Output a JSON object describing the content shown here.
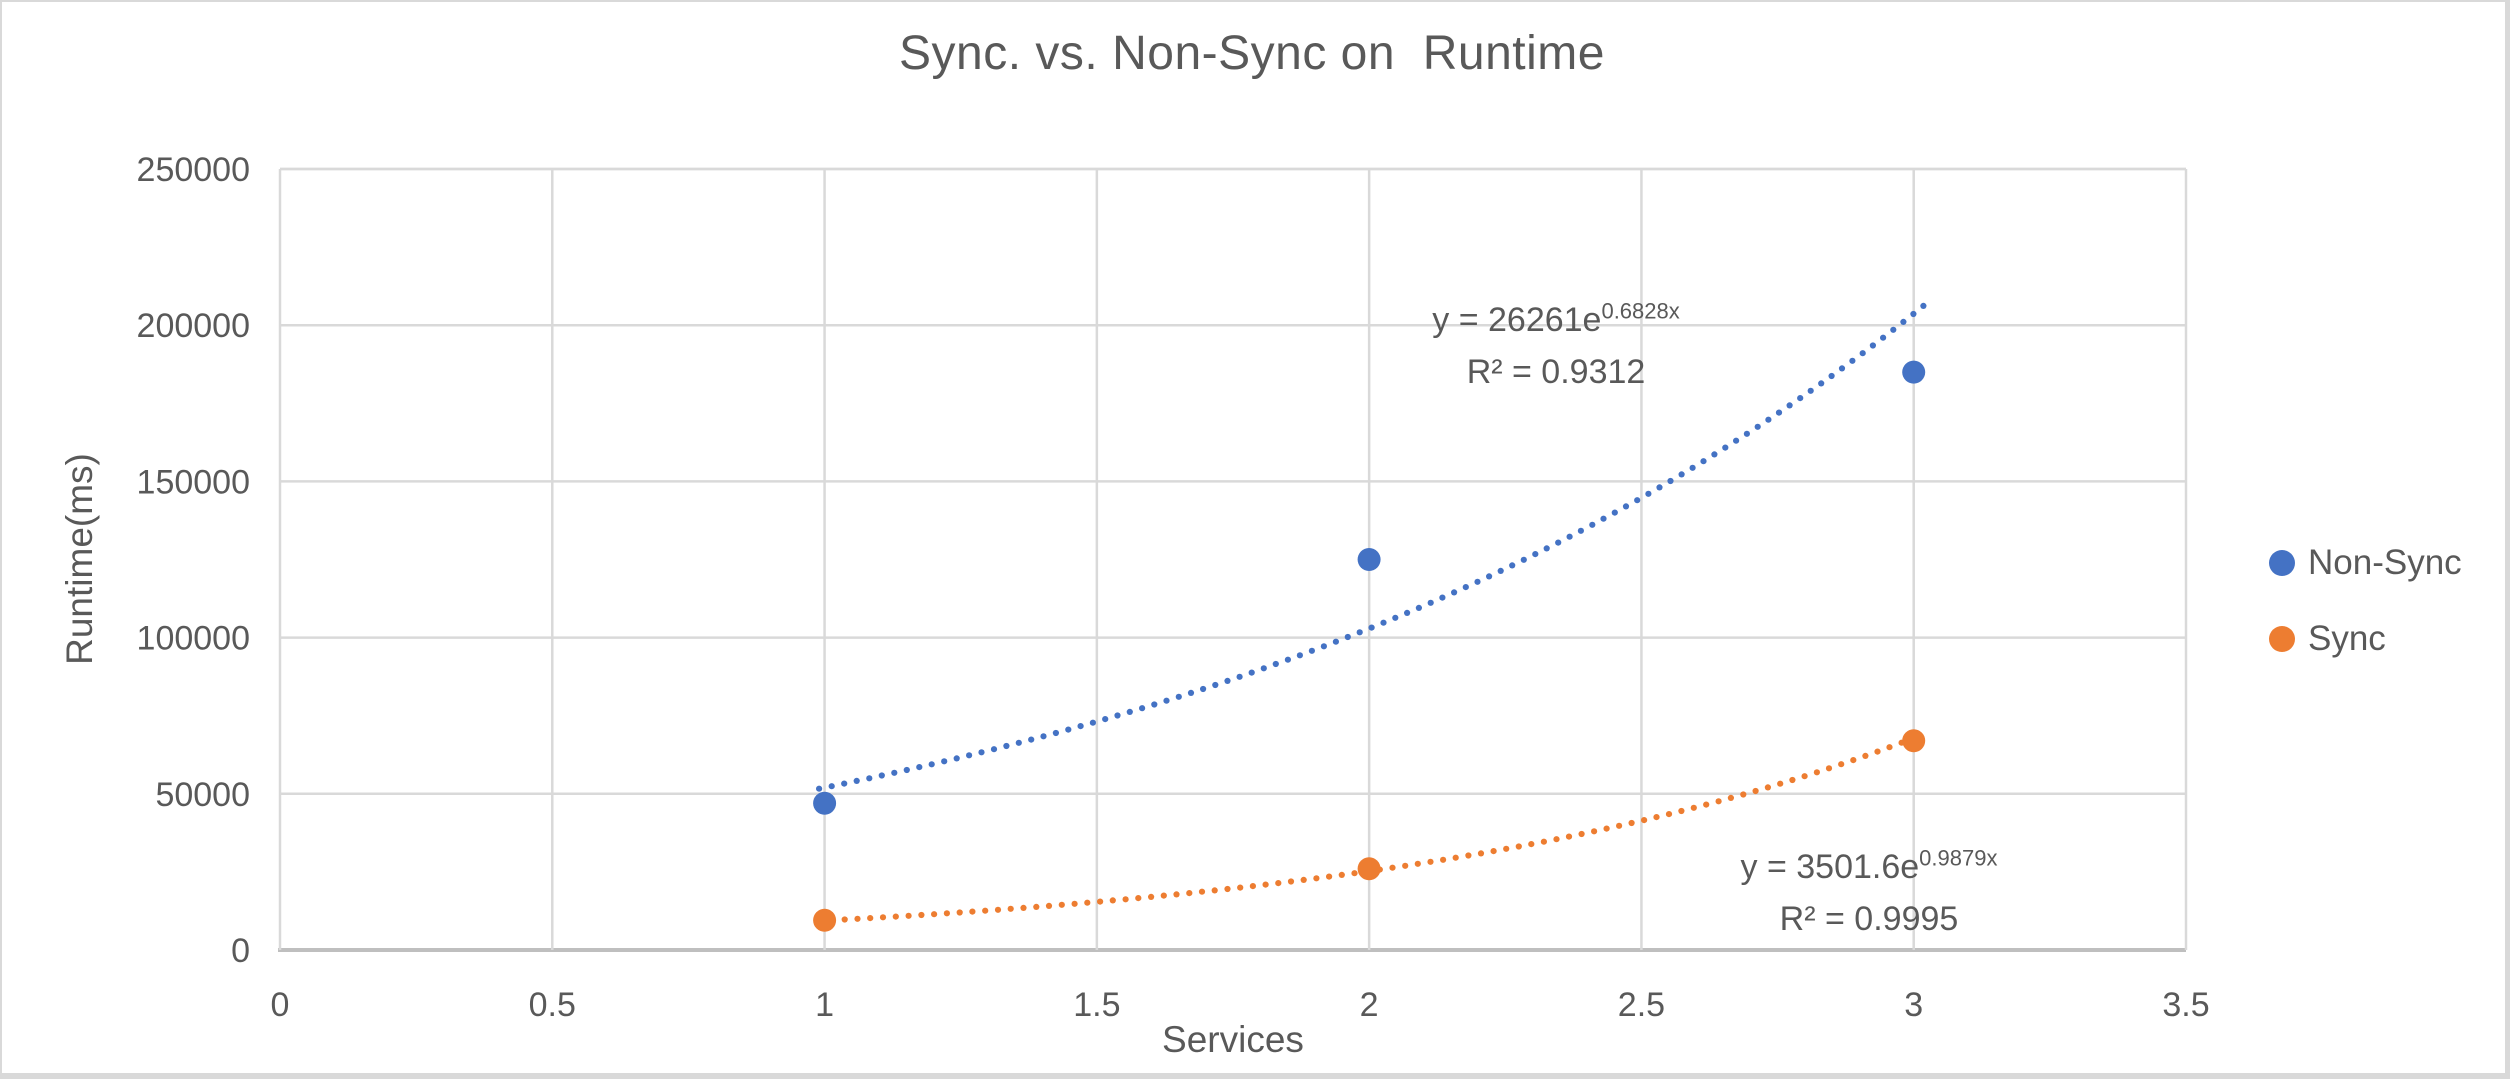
{
  "window": {
    "background": "#ffffff",
    "frame_border": "#d9d9d9"
  },
  "chart_data": {
    "type": "scatter",
    "title": "Sync. vs. Non-Sync on  Runtime",
    "xlabel": "Services",
    "ylabel": "Runtime(ms)",
    "xlim": [
      0,
      3.5
    ],
    "ylim": [
      0,
      250000
    ],
    "x_ticks": [
      0,
      0.5,
      1,
      1.5,
      2,
      2.5,
      3,
      3.5
    ],
    "x_tick_labels": [
      "0",
      "0.5",
      "1",
      "1.5",
      "2",
      "2.5",
      "3",
      "3.5"
    ],
    "y_ticks": [
      0,
      50000,
      100000,
      150000,
      200000,
      250000
    ],
    "y_tick_labels": [
      "0",
      "50000",
      "100000",
      "150000",
      "200000",
      "250000"
    ],
    "grid": true,
    "legend_position": "right-center",
    "series": [
      {
        "name": "Non-Sync",
        "color": "#4472C4",
        "x": [
          1,
          2,
          3
        ],
        "y": [
          47000,
          125000,
          185000
        ],
        "trendline": {
          "type": "exponential",
          "a": 26261,
          "b": 0.6828,
          "x_start": 0.99,
          "x_end": 3.02,
          "eq_base": "y = 26261e",
          "eq_sup": "0.6828x",
          "r2": "R² = 0.9312"
        }
      },
      {
        "name": "Sync",
        "color": "#ED7D31",
        "x": [
          1,
          2,
          3
        ],
        "y": [
          9500,
          26000,
          67000
        ],
        "trendline": {
          "type": "exponential",
          "a": 3501.6,
          "b": 0.9879,
          "x_start": 0.99,
          "x_end": 3.02,
          "eq_base": "y = 3501.6e",
          "eq_sup": "0.9879x",
          "r2": "R² = 0.9995"
        }
      }
    ],
    "style_colors": {
      "grid": "#d9d9d9",
      "axis_line": "#bfbfbf",
      "text": "#595959"
    }
  }
}
